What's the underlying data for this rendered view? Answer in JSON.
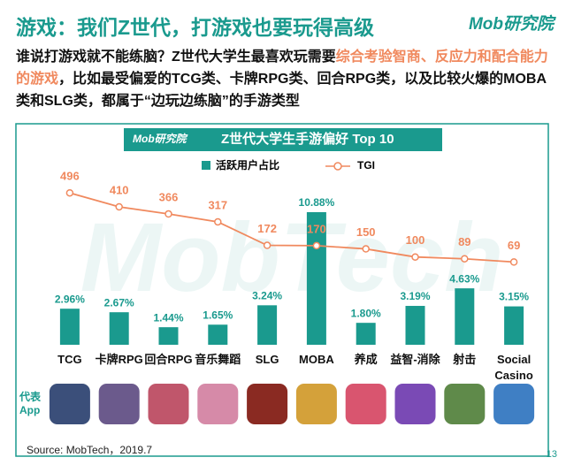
{
  "page": {
    "title": "游戏：我们Z世代，打游戏也要玩得高级",
    "logo": "Mob研究院",
    "intro": [
      "谁说打游戏就不能练脑？Z世代大学生最喜欢玩需要",
      "综合考验智商、反应力和配合能力的游戏",
      "，比如最受偏爱的TCG类、卡牌RPG类、回合RPG类，以及比较火爆的MOBA类和SLG类，都属于“边玩边练脑”的手游类型"
    ],
    "chart_logo": "Mob研究院",
    "watermark": "MobTech",
    "app_label": "代表App",
    "source": "Source: MobTech，2019.7",
    "page_number": "13"
  },
  "chart_data": {
    "type": "bar",
    "title": "Z世代大学生手游偏好 Top 10",
    "categories": [
      "TCG",
      "卡牌RPG",
      "回合RPG",
      "音乐舞蹈",
      "SLG",
      "MOBA",
      "养成",
      "益智-消除",
      "射击",
      "Social Casino"
    ],
    "series": [
      {
        "name": "活跃用户占比",
        "color": "#1a9a8e",
        "values": [
          2.96,
          2.67,
          1.44,
          1.65,
          3.24,
          10.88,
          1.8,
          3.19,
          4.63,
          3.15
        ],
        "value_labels": [
          "2.96%",
          "2.67%",
          "1.44%",
          "1.65%",
          "3.24%",
          "10.88%",
          "1.80%",
          "3.19%",
          "4.63%",
          "3.15%"
        ]
      },
      {
        "name": "TGI",
        "type": "line",
        "color": "#f0895e",
        "values": [
          496,
          410,
          366,
          317,
          172,
          170,
          150,
          100,
          89,
          69
        ]
      }
    ],
    "legend": "top"
  }
}
